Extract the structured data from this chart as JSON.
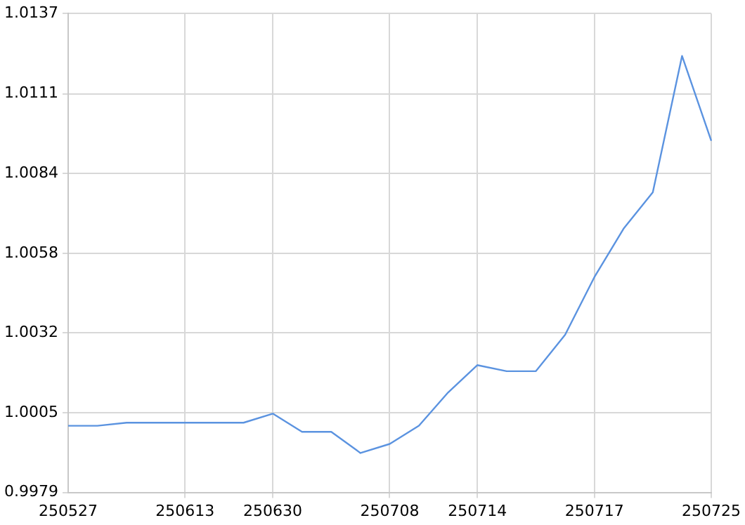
{
  "chart_data": {
    "type": "line",
    "categories": [
      "250527",
      null,
      null,
      null,
      "250613",
      null,
      null,
      "250630",
      null,
      null,
      null,
      "250708",
      null,
      null,
      "250714",
      null,
      null,
      null,
      "250717",
      null,
      null,
      null,
      "250725"
    ],
    "series": [
      {
        "color": "#5b93e0",
        "values": [
          1.0001,
          1.0001,
          1.0002,
          1.0002,
          1.0002,
          1.0002,
          1.0002,
          1.0005,
          0.9999,
          0.9999,
          0.9992,
          0.9995,
          1.0001,
          1.0012,
          1.0021,
          1.0019,
          1.0019,
          1.0031,
          1.005,
          1.0066,
          1.0078,
          1.0123,
          1.0095
        ]
      }
    ],
    "ylim": [
      0.9979,
      1.0137
    ],
    "yticks": [
      0.9979,
      {
        "value": 1.00053,
        "label": "1.0005"
      },
      {
        "value": 1.00316,
        "label": "1.0032"
      },
      {
        "value": 1.00579,
        "label": "1.0058"
      },
      {
        "value": 1.00842,
        "label": "1.0084"
      },
      {
        "value": 1.01105,
        "label": "1.0111"
      },
      1.0137
    ],
    "grid": true,
    "legend": false,
    "marker": "none",
    "line_style": "solid"
  }
}
